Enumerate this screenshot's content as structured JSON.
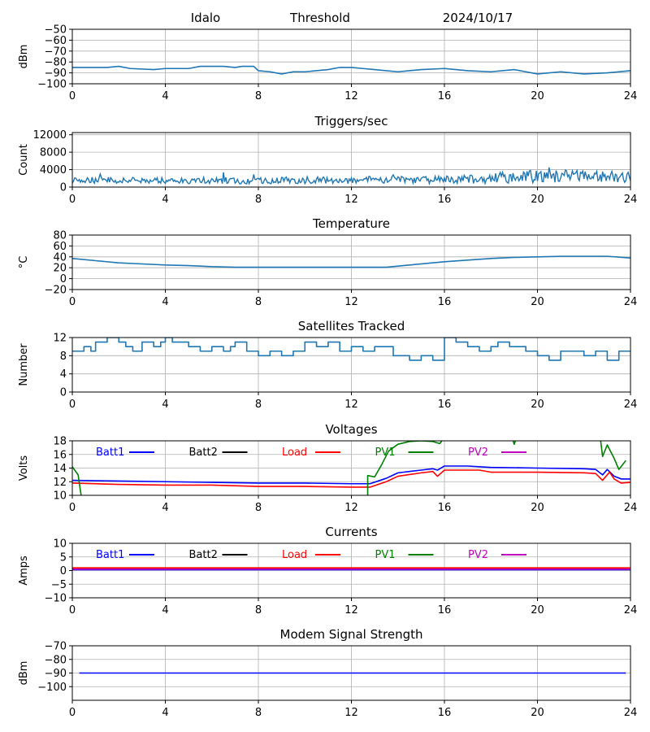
{
  "header": {
    "station": "Idalo",
    "mode": "Threshold",
    "date": "2024/10/17"
  },
  "colors": {
    "series_default": "#1f77b4",
    "batt1": "#0000ff",
    "batt2": "#000000",
    "load": "#ff0000",
    "pv1": "#008000",
    "pv2": "#bf00bf",
    "grid": "#b0b0b0",
    "axis": "#000000"
  },
  "chart_data": [
    {
      "id": "threshold",
      "type": "line",
      "title": "",
      "ylabel": "dBm",
      "xlabel": "",
      "xlim": [
        0,
        24
      ],
      "ylim": [
        -100,
        -50
      ],
      "grid": true,
      "xticks": [
        0,
        4,
        8,
        12,
        16,
        20,
        24
      ],
      "yticks": [
        -100,
        -90,
        -80,
        -70,
        -60,
        -50
      ],
      "series": [
        {
          "color_key": "series_default",
          "points": [
            [
              0,
              -85
            ],
            [
              1.5,
              -85
            ],
            [
              2,
              -84
            ],
            [
              2.5,
              -86
            ],
            [
              3.5,
              -87
            ],
            [
              4,
              -86
            ],
            [
              5,
              -86
            ],
            [
              5.5,
              -84
            ],
            [
              6.5,
              -84
            ],
            [
              7,
              -85
            ],
            [
              7.3,
              -84
            ],
            [
              7.8,
              -84
            ],
            [
              8,
              -88
            ],
            [
              8.5,
              -89
            ],
            [
              9,
              -91
            ],
            [
              9.5,
              -89
            ],
            [
              10,
              -89
            ],
            [
              11,
              -87
            ],
            [
              11.5,
              -85
            ],
            [
              12,
              -85
            ],
            [
              12.5,
              -86
            ],
            [
              13,
              -87
            ],
            [
              14,
              -89
            ],
            [
              15,
              -87
            ],
            [
              16,
              -86
            ],
            [
              16.5,
              -87
            ],
            [
              17,
              -88
            ],
            [
              18,
              -89
            ],
            [
              19,
              -87
            ],
            [
              19.5,
              -89
            ],
            [
              20,
              -91
            ],
            [
              21,
              -89
            ],
            [
              22,
              -91
            ],
            [
              23,
              -90
            ],
            [
              23.5,
              -89
            ],
            [
              24,
              -88
            ]
          ]
        }
      ]
    },
    {
      "id": "triggers",
      "type": "line",
      "title": "Triggers/sec",
      "ylabel": "Count",
      "xlabel": "",
      "xlim": [
        0,
        24
      ],
      "ylim": [
        0,
        12500
      ],
      "grid": true,
      "xticks": [
        0,
        4,
        8,
        12,
        16,
        20,
        24
      ],
      "yticks": [
        0,
        4000,
        8000,
        12000
      ],
      "series": [
        {
          "color_key": "series_default",
          "noise": {
            "base": [
              [
                0,
                1600
              ],
              [
                4,
                1500
              ],
              [
                8,
                1500
              ],
              [
                12,
                1600
              ],
              [
                16,
                1700
              ],
              [
                17.5,
                2000
              ],
              [
                20,
                2500
              ],
              [
                22,
                2500
              ],
              [
                24,
                2200
              ]
            ],
            "amplitude": [
              [
                0,
                700
              ],
              [
                4,
                700
              ],
              [
                8,
                800
              ],
              [
                12,
                800
              ],
              [
                16,
                900
              ],
              [
                17.5,
                1200
              ],
              [
                20,
                1500
              ],
              [
                22,
                1300
              ],
              [
                24,
                1200
              ]
            ],
            "spikes": [
              [
                1.2,
                3000
              ],
              [
                6.5,
                3400
              ],
              [
                7.8,
                2900
              ],
              [
                13.8,
                2800
              ],
              [
                20.5,
                4500
              ],
              [
                21.2,
                3900
              ],
              [
                23.2,
                3600
              ]
            ]
          }
        }
      ]
    },
    {
      "id": "temperature",
      "type": "line",
      "title": "Temperature",
      "ylabel": "°C",
      "xlabel": "",
      "xlim": [
        0,
        24
      ],
      "ylim": [
        -20,
        80
      ],
      "grid": true,
      "xticks": [
        0,
        4,
        8,
        12,
        16,
        20,
        24
      ],
      "yticks": [
        -20,
        0,
        20,
        40,
        60,
        80
      ],
      "series": [
        {
          "color_key": "series_default",
          "points": [
            [
              0,
              37
            ],
            [
              1,
              33
            ],
            [
              2,
              29
            ],
            [
              3,
              27
            ],
            [
              4,
              25
            ],
            [
              5,
              24
            ],
            [
              6,
              22
            ],
            [
              7,
              21
            ],
            [
              8,
              21
            ],
            [
              10,
              21
            ],
            [
              12,
              21
            ],
            [
              13.5,
              21
            ],
            [
              14.5,
              25
            ],
            [
              16,
              31
            ],
            [
              17,
              34
            ],
            [
              18,
              37
            ],
            [
              19,
              39
            ],
            [
              20,
              40
            ],
            [
              21,
              41
            ],
            [
              22,
              41
            ],
            [
              23,
              41
            ],
            [
              24,
              38
            ]
          ]
        }
      ]
    },
    {
      "id": "satellites",
      "type": "line",
      "title": "Satellites Tracked",
      "ylabel": "Number",
      "xlabel": "",
      "xlim": [
        0,
        24
      ],
      "ylim": [
        0,
        12
      ],
      "grid": true,
      "xticks": [
        0,
        4,
        8,
        12,
        16,
        20,
        24
      ],
      "yticks": [
        0,
        4,
        8,
        12
      ],
      "series": [
        {
          "color_key": "series_default",
          "steps": [
            [
              0,
              9
            ],
            [
              0.5,
              10
            ],
            [
              0.8,
              9
            ],
            [
              1,
              11
            ],
            [
              1.5,
              12
            ],
            [
              2,
              11
            ],
            [
              2.3,
              10
            ],
            [
              2.6,
              9
            ],
            [
              3,
              11
            ],
            [
              3.5,
              10
            ],
            [
              3.8,
              11
            ],
            [
              4,
              12
            ],
            [
              4.3,
              11
            ],
            [
              5,
              10
            ],
            [
              5.5,
              9
            ],
            [
              6,
              10
            ],
            [
              6.5,
              9
            ],
            [
              6.8,
              10
            ],
            [
              7,
              11
            ],
            [
              7.5,
              9
            ],
            [
              8,
              8
            ],
            [
              8.5,
              9
            ],
            [
              9,
              8
            ],
            [
              9.5,
              9
            ],
            [
              10,
              11
            ],
            [
              10.5,
              10
            ],
            [
              11,
              11
            ],
            [
              11.5,
              9
            ],
            [
              12,
              10
            ],
            [
              12.5,
              9
            ],
            [
              13,
              10
            ],
            [
              13.8,
              8
            ],
            [
              14.5,
              7
            ],
            [
              15,
              8
            ],
            [
              15.5,
              7
            ],
            [
              16,
              12
            ],
            [
              16.5,
              11
            ],
            [
              17,
              10
            ],
            [
              17.5,
              9
            ],
            [
              18,
              10
            ],
            [
              18.3,
              11
            ],
            [
              18.8,
              10
            ],
            [
              19.5,
              9
            ],
            [
              20,
              8
            ],
            [
              20.5,
              7
            ],
            [
              21,
              9
            ],
            [
              22,
              8
            ],
            [
              22.5,
              9
            ],
            [
              23,
              7
            ],
            [
              23.5,
              9
            ],
            [
              24,
              9
            ]
          ]
        }
      ]
    },
    {
      "id": "voltages",
      "type": "line",
      "title": "Voltages",
      "ylabel": "Volts",
      "xlabel": "",
      "xlim": [
        0,
        24
      ],
      "ylim": [
        10,
        18
      ],
      "grid": true,
      "xticks": [
        0,
        4,
        8,
        12,
        16,
        20,
        24
      ],
      "yticks": [
        10,
        12,
        14,
        16,
        18
      ],
      "legend": [
        "Batt1",
        "Batt2",
        "Load",
        "PV1",
        "PV2"
      ],
      "series": [
        {
          "name": "Batt1",
          "color_key": "batt1",
          "points": [
            [
              0,
              12.2
            ],
            [
              2,
              12.1
            ],
            [
              4,
              12.0
            ],
            [
              6,
              11.9
            ],
            [
              8,
              11.8
            ],
            [
              10,
              11.8
            ],
            [
              12,
              11.7
            ],
            [
              12.8,
              11.7
            ],
            [
              13.5,
              12.5
            ],
            [
              14,
              13.3
            ],
            [
              15,
              13.7
            ],
            [
              15.5,
              13.9
            ],
            [
              15.7,
              13.7
            ],
            [
              16,
              14.3
            ],
            [
              17,
              14.3
            ],
            [
              18,
              14.1
            ],
            [
              20,
              14.0
            ],
            [
              22,
              13.9
            ],
            [
              22.5,
              13.8
            ],
            [
              22.8,
              13.0
            ],
            [
              23,
              13.8
            ],
            [
              23.3,
              12.8
            ],
            [
              23.6,
              12.4
            ],
            [
              24,
              12.4
            ]
          ]
        },
        {
          "name": "Load",
          "color_key": "load",
          "points": [
            [
              0,
              11.8
            ],
            [
              2,
              11.6
            ],
            [
              4,
              11.5
            ],
            [
              6,
              11.5
            ],
            [
              8,
              11.3
            ],
            [
              10,
              11.3
            ],
            [
              12,
              11.2
            ],
            [
              12.8,
              11.2
            ],
            [
              13.5,
              12.0
            ],
            [
              14,
              12.8
            ],
            [
              15,
              13.3
            ],
            [
              15.5,
              13.5
            ],
            [
              15.7,
              12.8
            ],
            [
              16,
              13.7
            ],
            [
              17,
              13.7
            ],
            [
              17.5,
              13.7
            ],
            [
              18,
              13.4
            ],
            [
              20,
              13.4
            ],
            [
              22,
              13.3
            ],
            [
              22.5,
              13.2
            ],
            [
              22.8,
              12.2
            ],
            [
              23.1,
              13.4
            ],
            [
              23.3,
              12.4
            ],
            [
              23.6,
              11.8
            ],
            [
              24,
              11.9
            ]
          ]
        },
        {
          "name": "PV1",
          "color_key": "pv1",
          "points": [
            [
              0,
              14.2
            ],
            [
              0.25,
              13.0
            ],
            [
              0.4,
              9.5
            ]
          ],
          "points2": [
            [
              12.7,
              9.5
            ],
            [
              12.7,
              12.9
            ],
            [
              13,
              12.7
            ],
            [
              13.3,
              14.5
            ],
            [
              13.6,
              16.5
            ],
            [
              14,
              17.5
            ],
            [
              14.5,
              17.9
            ],
            [
              15,
              18.0
            ],
            [
              15.5,
              17.9
            ],
            [
              15.8,
              17.6
            ],
            [
              16,
              18.5
            ]
          ],
          "points3": [
            [
              18.9,
              18.5
            ],
            [
              19,
              17.5
            ],
            [
              19.1,
              18.5
            ]
          ],
          "points4": [
            [
              22.7,
              18.5
            ],
            [
              22.8,
              15.7
            ],
            [
              23,
              17.4
            ],
            [
              23.3,
              15.4
            ],
            [
              23.5,
              13.8
            ],
            [
              23.8,
              15.1
            ]
          ]
        }
      ]
    },
    {
      "id": "currents",
      "type": "line",
      "title": "Currents",
      "ylabel": "Amps",
      "xlabel": "",
      "xlim": [
        0,
        24
      ],
      "ylim": [
        -10,
        10
      ],
      "grid": true,
      "xticks": [
        0,
        4,
        8,
        12,
        16,
        20,
        24
      ],
      "yticks": [
        -10,
        -5,
        0,
        5,
        10
      ],
      "legend": [
        "Batt1",
        "Batt2",
        "Load",
        "PV1",
        "PV2"
      ],
      "series": [
        {
          "name": "Batt1",
          "color_key": "batt1",
          "points": [
            [
              0,
              0.3
            ],
            [
              24,
              0.3
            ]
          ]
        },
        {
          "name": "Load",
          "color_key": "load",
          "points": [
            [
              0,
              1.0
            ],
            [
              24,
              1.0
            ]
          ]
        },
        {
          "name": "PV2",
          "color_key": "pv2",
          "points": [
            [
              0,
              0.5
            ],
            [
              24,
              0.5
            ]
          ]
        }
      ]
    },
    {
      "id": "modem",
      "type": "line",
      "title": "Modem Signal Strength",
      "ylabel": "dBm",
      "xlabel": "",
      "xlim": [
        0,
        24
      ],
      "ylim": [
        -110,
        -70
      ],
      "grid": true,
      "xticks": [
        0,
        4,
        8,
        12,
        16,
        20,
        24
      ],
      "yticks": [
        -100,
        -90,
        -80,
        -70
      ],
      "series": [
        {
          "color_key": "batt1",
          "points": [
            [
              0.3,
              -90
            ],
            [
              23.8,
              -90
            ]
          ]
        }
      ]
    }
  ]
}
